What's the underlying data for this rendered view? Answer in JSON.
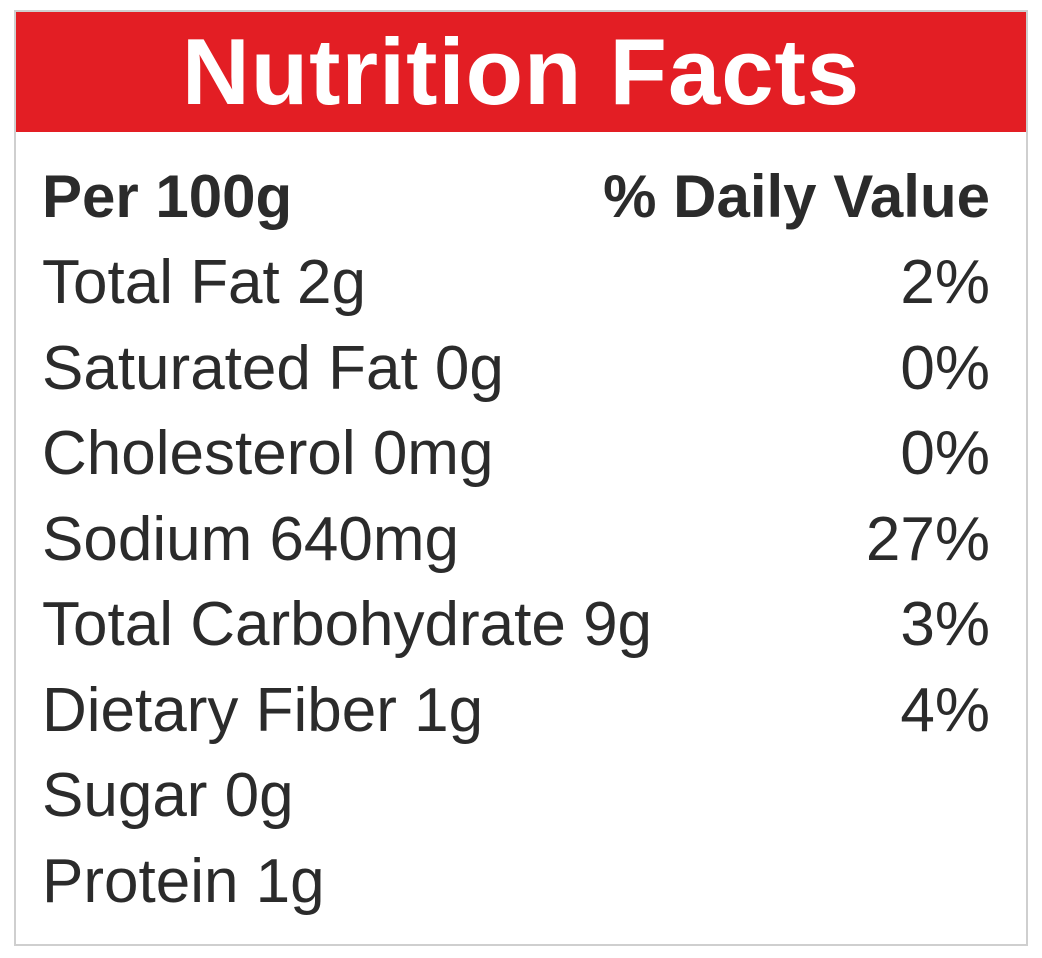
{
  "title": "Nutrition Facts",
  "header": {
    "left": "Per 100g",
    "right": "% Daily Value"
  },
  "rows": [
    {
      "label": "Total Fat 2g",
      "dv": "2%"
    },
    {
      "label": "Saturated Fat 0g",
      "dv": "0%"
    },
    {
      "label": "Cholesterol 0mg",
      "dv": "0%"
    },
    {
      "label": "Sodium 640mg",
      "dv": "27%"
    },
    {
      "label": "Total Carbohydrate 9g",
      "dv": "3%"
    },
    {
      "label": "Dietary Fiber 1g",
      "dv": "4%"
    },
    {
      "label": "Sugar 0g"
    },
    {
      "label": "Protein 1g"
    }
  ]
}
